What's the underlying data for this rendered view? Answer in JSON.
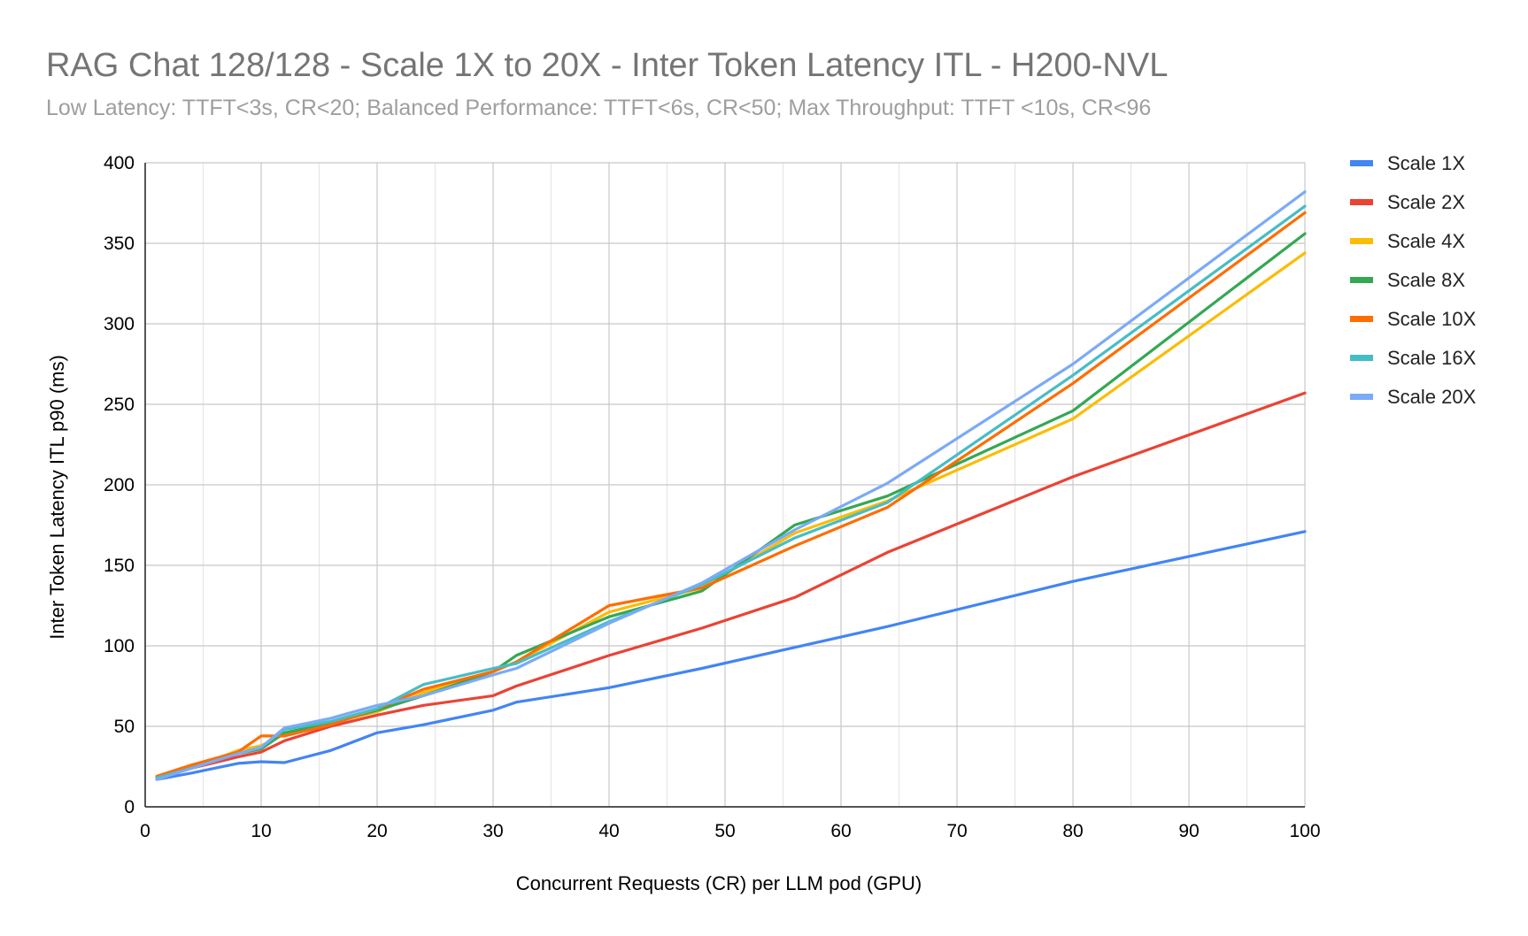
{
  "chart_data": {
    "type": "line",
    "title": "RAG Chat 128/128 - Scale 1X to 20X - Inter Token Latency ITL - H200-NVL",
    "subtitle": "Low Latency: TTFT<3s, CR<20; Balanced Performance: TTFT<6s, CR<50; Max Throughput: TTFT <10s, CR<96",
    "xlabel": "Concurrent Requests (CR) per LLM pod (GPU)",
    "ylabel": "Inter Token Latency ITL p90 (ms)",
    "xlim": [
      0,
      100
    ],
    "ylim": [
      0,
      400
    ],
    "x_ticks": [
      0,
      10,
      20,
      30,
      40,
      50,
      60,
      70,
      80,
      90,
      100
    ],
    "y_ticks": [
      0,
      50,
      100,
      150,
      200,
      250,
      300,
      350,
      400
    ],
    "grid": true,
    "legend_position": "right",
    "series": [
      {
        "name": "Scale 1X",
        "color": "#4285f4",
        "points": [
          [
            1,
            17
          ],
          [
            4,
            21
          ],
          [
            8,
            27
          ],
          [
            10,
            28
          ],
          [
            12,
            27.5
          ],
          [
            16,
            35
          ],
          [
            20,
            46
          ],
          [
            24,
            51
          ],
          [
            30,
            60
          ],
          [
            32,
            65
          ],
          [
            40,
            74
          ],
          [
            48,
            86
          ],
          [
            56,
            99
          ],
          [
            64,
            112
          ],
          [
            80,
            140
          ],
          [
            100,
            171
          ]
        ]
      },
      {
        "name": "Scale 2X",
        "color": "#ea4335",
        "points": [
          [
            1,
            18
          ],
          [
            4,
            24
          ],
          [
            8,
            31
          ],
          [
            10,
            34
          ],
          [
            12,
            41
          ],
          [
            16,
            50
          ],
          [
            20,
            57
          ],
          [
            24,
            63
          ],
          [
            30,
            69
          ],
          [
            32,
            75
          ],
          [
            40,
            94
          ],
          [
            48,
            111
          ],
          [
            56,
            130
          ],
          [
            64,
            158
          ],
          [
            80,
            205
          ],
          [
            100,
            257
          ]
        ]
      },
      {
        "name": "Scale 4X",
        "color": "#fbbc04",
        "points": [
          [
            1,
            18
          ],
          [
            4,
            24
          ],
          [
            8,
            35
          ],
          [
            10,
            38
          ],
          [
            12,
            45
          ],
          [
            16,
            52
          ],
          [
            20,
            59
          ],
          [
            24,
            71
          ],
          [
            30,
            84
          ],
          [
            32,
            90
          ],
          [
            40,
            121
          ],
          [
            48,
            136
          ],
          [
            56,
            170
          ],
          [
            64,
            190
          ],
          [
            80,
            241
          ],
          [
            100,
            344
          ]
        ]
      },
      {
        "name": "Scale 8X",
        "color": "#34a853",
        "points": [
          [
            1,
            18
          ],
          [
            4,
            25
          ],
          [
            8,
            33
          ],
          [
            10,
            36
          ],
          [
            12,
            46
          ],
          [
            16,
            52
          ],
          [
            20,
            60
          ],
          [
            24,
            69
          ],
          [
            30,
            84
          ],
          [
            32,
            94
          ],
          [
            40,
            118
          ],
          [
            48,
            134
          ],
          [
            56,
            175
          ],
          [
            64,
            193
          ],
          [
            80,
            246
          ],
          [
            100,
            356
          ]
        ]
      },
      {
        "name": "Scale 10X",
        "color": "#ff6d01",
        "points": [
          [
            1,
            19
          ],
          [
            4,
            26
          ],
          [
            8,
            34
          ],
          [
            10,
            44
          ],
          [
            12,
            44
          ],
          [
            16,
            51
          ],
          [
            20,
            61
          ],
          [
            24,
            73
          ],
          [
            30,
            84
          ],
          [
            32,
            90
          ],
          [
            40,
            125
          ],
          [
            48,
            136
          ],
          [
            56,
            162
          ],
          [
            64,
            186
          ],
          [
            80,
            263
          ],
          [
            100,
            369
          ]
        ]
      },
      {
        "name": "Scale 16X",
        "color": "#46bdc6",
        "points": [
          [
            1,
            18
          ],
          [
            4,
            24
          ],
          [
            8,
            33
          ],
          [
            10,
            37
          ],
          [
            12,
            48
          ],
          [
            16,
            53
          ],
          [
            20,
            61
          ],
          [
            24,
            76
          ],
          [
            30,
            86
          ],
          [
            32,
            89
          ],
          [
            40,
            115
          ],
          [
            48,
            138
          ],
          [
            56,
            167
          ],
          [
            64,
            189
          ],
          [
            80,
            268
          ],
          [
            100,
            373
          ]
        ]
      },
      {
        "name": "Scale 20X",
        "color": "#7baaf7",
        "points": [
          [
            1,
            17
          ],
          [
            4,
            24
          ],
          [
            8,
            33
          ],
          [
            10,
            37
          ],
          [
            12,
            49
          ],
          [
            16,
            55
          ],
          [
            20,
            63
          ],
          [
            24,
            69
          ],
          [
            30,
            82
          ],
          [
            32,
            86
          ],
          [
            40,
            114
          ],
          [
            48,
            139
          ],
          [
            56,
            172
          ],
          [
            64,
            201
          ],
          [
            80,
            275
          ],
          [
            100,
            382
          ]
        ]
      }
    ]
  }
}
